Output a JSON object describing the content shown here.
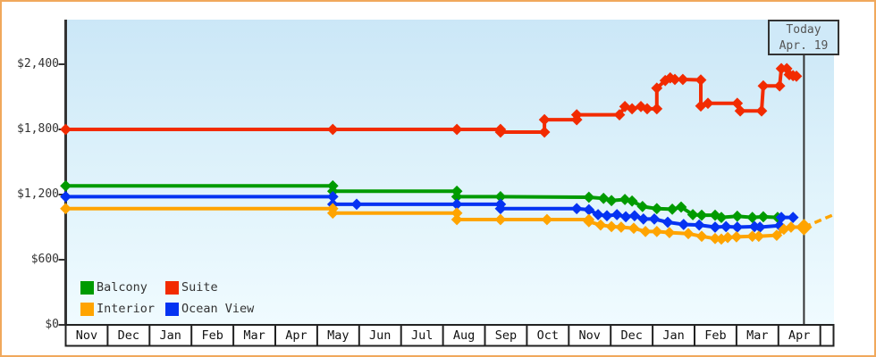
{
  "frame": {
    "border_color": "#f0a85c",
    "background": "#ffffff"
  },
  "chart_data": {
    "type": "line",
    "x_axis": {
      "unit": "month",
      "labels": [
        "Nov",
        "Dec",
        "Jan",
        "Feb",
        "Mar",
        "Apr",
        "May",
        "Jun",
        "Jul",
        "Aug",
        "Sep",
        "Oct",
        "Nov",
        "Dec",
        "Jan",
        "Feb",
        "Mar",
        "Apr"
      ]
    },
    "y_axis": {
      "ticks": [
        {
          "label": "$0",
          "value": 0
        },
        {
          "label": "$600",
          "value": 600
        },
        {
          "label": "$1,200",
          "value": 1200
        },
        {
          "label": "$1,800",
          "value": 1800
        },
        {
          "label": "$2,400",
          "value": 2400
        }
      ],
      "max_value": 2810
    },
    "today_marker": {
      "line1": "Today",
      "line2": "Apr. 19",
      "x_months": 17.61
    },
    "series": [
      {
        "name": "Balcony",
        "color": "#009b00",
        "points": [
          [
            0,
            1280
          ],
          [
            6.37,
            1280
          ],
          [
            6.37,
            1230
          ],
          [
            9.33,
            1230
          ],
          [
            9.33,
            1180
          ],
          [
            10.37,
            1180
          ],
          [
            12.48,
            1175
          ],
          [
            12.83,
            1165
          ],
          [
            13.02,
            1145
          ],
          [
            13.34,
            1155
          ],
          [
            13.51,
            1140
          ],
          [
            13.76,
            1090
          ],
          [
            14.1,
            1070
          ],
          [
            14.47,
            1065
          ],
          [
            14.68,
            1085
          ],
          [
            14.96,
            1015
          ],
          [
            15.17,
            1010
          ],
          [
            15.49,
            1010
          ],
          [
            15.64,
            990
          ],
          [
            16.02,
            1000
          ],
          [
            16.38,
            990
          ],
          [
            16.64,
            995
          ],
          [
            16.98,
            990
          ]
        ]
      },
      {
        "name": "Ocean View",
        "color": "#0533f2",
        "points": [
          [
            0,
            1180
          ],
          [
            6.37,
            1180
          ],
          [
            6.37,
            1110
          ],
          [
            6.94,
            1110
          ],
          [
            9.33,
            1110
          ],
          [
            10.37,
            1110
          ],
          [
            10.37,
            1070
          ],
          [
            12.19,
            1070
          ],
          [
            12.48,
            1060
          ],
          [
            12.7,
            1015
          ],
          [
            12.91,
            1005
          ],
          [
            13.15,
            1015
          ],
          [
            13.36,
            995
          ],
          [
            13.57,
            1005
          ],
          [
            13.78,
            975
          ],
          [
            14.04,
            975
          ],
          [
            14.36,
            945
          ],
          [
            14.74,
            925
          ],
          [
            15.11,
            920
          ],
          [
            15.49,
            900
          ],
          [
            15.75,
            905
          ],
          [
            16.02,
            900
          ],
          [
            16.43,
            905
          ],
          [
            16.56,
            900
          ],
          [
            17.03,
            915
          ],
          [
            17.07,
            990
          ],
          [
            17.35,
            990
          ]
        ]
      },
      {
        "name": "Interior",
        "color": "#ffa400",
        "points": [
          [
            0,
            1070
          ],
          [
            6.37,
            1070
          ],
          [
            6.37,
            1030
          ],
          [
            9.33,
            1030
          ],
          [
            9.33,
            970
          ],
          [
            10.37,
            970
          ],
          [
            11.48,
            970
          ],
          [
            12.48,
            970
          ],
          [
            12.48,
            950
          ],
          [
            12.76,
            920
          ],
          [
            13.02,
            905
          ],
          [
            13.25,
            900
          ],
          [
            13.55,
            890
          ],
          [
            13.83,
            860
          ],
          [
            14.1,
            860
          ],
          [
            14.4,
            850
          ],
          [
            14.85,
            840
          ],
          [
            15.17,
            815
          ],
          [
            15.49,
            795
          ],
          [
            15.64,
            790
          ],
          [
            15.79,
            805
          ],
          [
            16.0,
            810
          ],
          [
            16.38,
            815
          ],
          [
            16.53,
            815
          ],
          [
            16.96,
            825
          ],
          [
            17.13,
            880
          ],
          [
            17.3,
            900
          ],
          [
            17.61,
            900,
            "big"
          ]
        ]
      },
      {
        "name": "Suite",
        "color": "#f22b00",
        "points": [
          [
            0,
            1800
          ],
          [
            6.37,
            1800
          ],
          [
            9.33,
            1800
          ],
          [
            10.37,
            1800
          ],
          [
            10.37,
            1775
          ],
          [
            11.42,
            1775
          ],
          [
            11.42,
            1890
          ],
          [
            12.19,
            1890
          ],
          [
            12.19,
            1935
          ],
          [
            13.21,
            1935
          ],
          [
            13.34,
            2010
          ],
          [
            13.51,
            1990
          ],
          [
            13.72,
            2010
          ],
          [
            13.87,
            1990
          ],
          [
            14.1,
            1990
          ],
          [
            14.1,
            2180
          ],
          [
            14.3,
            2250
          ],
          [
            14.42,
            2275
          ],
          [
            14.53,
            2260
          ],
          [
            14.72,
            2260
          ],
          [
            15.15,
            2255
          ],
          [
            15.15,
            2015
          ],
          [
            15.32,
            2040
          ],
          [
            16.02,
            2040
          ],
          [
            16.09,
            1970
          ],
          [
            16.6,
            1970
          ],
          [
            16.64,
            2200
          ],
          [
            17.03,
            2200
          ],
          [
            17.07,
            2360
          ],
          [
            17.2,
            2360
          ],
          [
            17.26,
            2305
          ],
          [
            17.35,
            2295
          ],
          [
            17.43,
            2290
          ]
        ]
      }
    ],
    "projection": {
      "series": "Interior",
      "dashed": true,
      "points": [
        [
          17.61,
          900
        ],
        [
          18.35,
          1020
        ]
      ]
    },
    "legend": {
      "items": [
        {
          "label": "Balcony",
          "color": "#009b00"
        },
        {
          "label": "Suite",
          "color": "#f22b00"
        },
        {
          "label": "Interior",
          "color": "#ffa400"
        },
        {
          "label": "Ocean View",
          "color": "#0533f2"
        }
      ]
    },
    "colors": {
      "plot_bg_top": "#cbe7f7",
      "plot_bg_mid": "#e0f3fb",
      "plot_bg_bottom": "#f0fbff",
      "axis": "#333333",
      "grid_frame": "#222222",
      "today_line": "#333333",
      "today_box_bg": "#cfe9f8",
      "today_box_text": "#555555"
    }
  }
}
